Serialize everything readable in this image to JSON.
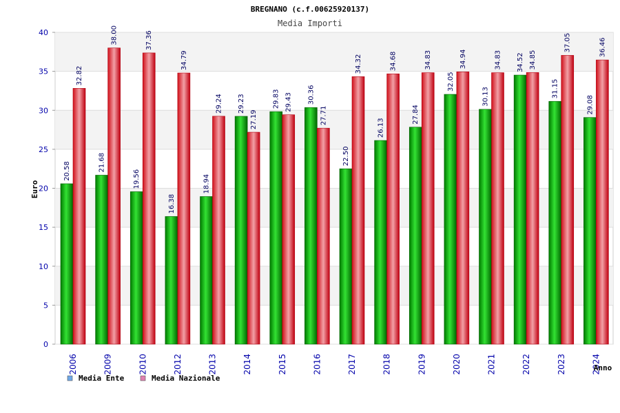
{
  "chart_data": {
    "type": "bar",
    "title": "BREGNANO (c.f.00625920137)",
    "subtitle": "Media Importi",
    "xlabel": "Anno",
    "ylabel": "Euro",
    "ylim": [
      0,
      40
    ],
    "yticks": [
      0,
      5,
      10,
      15,
      20,
      25,
      30,
      35,
      40
    ],
    "grid": true,
    "legend_position": "bottom-left",
    "categories": [
      "2006",
      "2009",
      "2010",
      "2012",
      "2013",
      "2014",
      "2015",
      "2016",
      "2017",
      "2018",
      "2019",
      "2020",
      "2021",
      "2022",
      "2023",
      "2024"
    ],
    "series": [
      {
        "name": "Media Ente",
        "color": "#00b000",
        "legend_color": "#6fa8e8",
        "values": [
          20.58,
          21.68,
          19.56,
          16.38,
          18.94,
          29.23,
          29.83,
          30.36,
          22.5,
          26.13,
          27.84,
          32.05,
          30.13,
          34.52,
          31.15,
          29.08
        ],
        "labels": [
          "20.58",
          "21.68",
          "19.56",
          "16.38",
          "18.94",
          "29.23",
          "29.83",
          "30.36",
          "22.50",
          "26.13",
          "27.84",
          "32.05",
          "30.13",
          "34.52",
          "31.15",
          "29.08"
        ]
      },
      {
        "name": "Media Nazionale",
        "color": "#e8101a",
        "legend_color": "#e07fb0",
        "values": [
          32.82,
          38.0,
          37.36,
          34.79,
          29.24,
          27.19,
          29.43,
          27.71,
          34.32,
          34.68,
          34.83,
          34.94,
          34.83,
          34.85,
          37.05,
          36.46
        ],
        "labels": [
          "32.82",
          "38.00",
          "37.36",
          "34.79",
          "29.24",
          "27.19",
          "29.43",
          "27.71",
          "34.32",
          "34.68",
          "34.83",
          "34.94",
          "34.83",
          "34.85",
          "37.05",
          "36.46"
        ]
      }
    ]
  }
}
